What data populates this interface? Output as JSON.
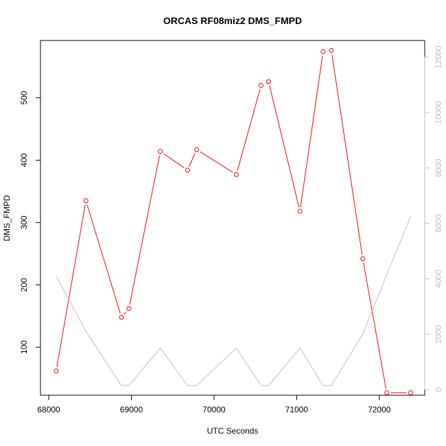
{
  "chart_data": {
    "type": "line",
    "title": "ORCAS RF08miz2 DMS_FMPD",
    "xlabel": "UTC Seconds",
    "ylabel": "DMS_FMPD",
    "xlim": [
      67900,
      72550
    ],
    "ylim": [
      23,
      592
    ],
    "y2lim": [
      -200,
      12600
    ],
    "grid": false,
    "x_ticks": [
      68000,
      69000,
      70000,
      71000,
      72000
    ],
    "y_ticks": [
      100,
      200,
      300,
      400,
      500
    ],
    "y2_ticks": [
      0,
      2000,
      4000,
      6000,
      8000,
      10000,
      12000
    ],
    "series": [
      {
        "axis": "left",
        "color": "#ff0000",
        "markers": true,
        "x": [
          68090,
          68450,
          68880,
          68970,
          69350,
          69680,
          69790,
          70270,
          70570,
          70660,
          71040,
          71320,
          71420,
          71800,
          72090,
          72380
        ],
        "y": [
          62,
          335,
          148,
          162,
          414,
          384,
          417,
          377,
          520,
          526,
          318,
          574,
          576,
          242,
          27,
          27
        ]
      },
      {
        "axis": "right",
        "color": "#bebebe",
        "markers": false,
        "x": [
          68090,
          68450,
          68880,
          68970,
          69350,
          69680,
          69790,
          70270,
          70570,
          70660,
          71040,
          71320,
          71420,
          71800,
          72090,
          72380
        ],
        "y": [
          4100,
          2100,
          150,
          150,
          1500,
          150,
          150,
          1500,
          150,
          150,
          1500,
          150,
          150,
          2000,
          4150,
          6250
        ]
      }
    ]
  }
}
